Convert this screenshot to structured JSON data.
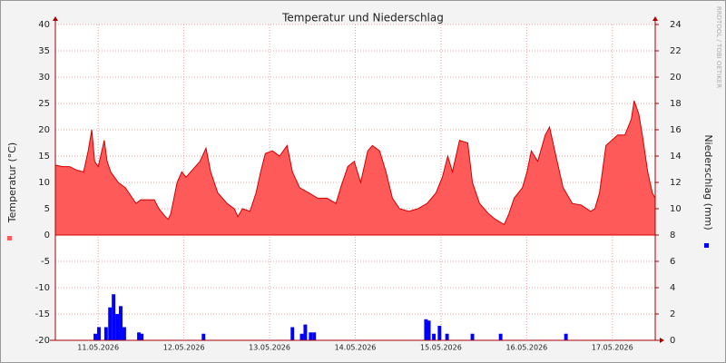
{
  "chart_data": {
    "type": "rrd",
    "title": "Temperatur und Niederschlag",
    "y_label": "Temperatur (°C)",
    "y2_label": "Niederschlag (mm)",
    "watermark": "RRDTOOL / TOBI OETIKER",
    "xlim": [
      0,
      168
    ],
    "xticks": [
      {
        "value": 12,
        "label": "11.05.2026"
      },
      {
        "value": 36,
        "label": "12.05.2026"
      },
      {
        "value": 60,
        "label": "13.05.2026"
      },
      {
        "value": 84,
        "label": "14.05.2026"
      },
      {
        "value": 108,
        "label": "15.05.2026"
      },
      {
        "value": 132,
        "label": "16.05.2026"
      },
      {
        "value": 156,
        "label": "17.05.2026"
      }
    ],
    "ylim": [
      -20,
      40
    ],
    "yticks": [
      -20,
      -15,
      -10,
      -5,
      0,
      5,
      10,
      15,
      20,
      25,
      30,
      35,
      40
    ],
    "y2lim": [
      0,
      24
    ],
    "y2ticks": [
      0,
      2,
      4,
      6,
      8,
      10,
      12,
      14,
      16,
      18,
      20,
      22,
      24
    ],
    "grid": true,
    "series": [
      {
        "kind": "area",
        "color": "#ff5a5a",
        "x": [
          0,
          2,
          4,
          6.1,
          7.9,
          9.2,
          10.2,
          11,
          12,
          13.7,
          14.5,
          15.5,
          17.6,
          19.6,
          21.6,
          22.6,
          23.9,
          27.7,
          29,
          30.8,
          31.6,
          32.3,
          34.1,
          35.4,
          36.6,
          37.9,
          40.5,
          42.2,
          43.5,
          45.5,
          48.1,
          50.1,
          51.1,
          52.4,
          54.5,
          56.2,
          57.5,
          58.8,
          60.8,
          62.8,
          64.9,
          66.4,
          68.4,
          71,
          73.5,
          76.1,
          78.6,
          79.9,
          81.9,
          83.7,
          85.5,
          87.5,
          88.8,
          90.8,
          92.6,
          94.4,
          96.4,
          99,
          101.5,
          104.1,
          106.6,
          108.4,
          109.9,
          111.2,
          113.2,
          115.5,
          116.8,
          118.8,
          121.4,
          123.2,
          125.7,
          127,
          128.5,
          130.8,
          132.1,
          133.3,
          135.1,
          137.2,
          138.4,
          140.2,
          142.2,
          144.8,
          147.3,
          149.9,
          151.1,
          152.4,
          154.2,
          157.5,
          159.5,
          161.3,
          162.1,
          163.4,
          164.4,
          165.9,
          167.2,
          168
        ],
        "values": [
          13.3,
          13,
          13,
          12.3,
          12,
          16,
          20,
          14,
          13,
          18,
          14,
          12,
          10,
          9,
          7,
          6,
          6.7,
          6.7,
          5,
          3.5,
          3,
          4,
          10,
          12,
          11,
          12,
          14,
          16.5,
          12,
          8,
          6,
          5,
          3.5,
          5,
          4.5,
          8,
          12,
          15.5,
          16,
          15,
          17,
          12,
          9,
          8,
          7,
          7,
          6,
          9,
          13,
          14,
          10,
          16,
          17,
          16,
          12,
          7,
          5,
          4.5,
          5,
          6,
          8,
          11,
          15,
          12,
          18,
          17.5,
          10,
          6,
          4,
          3,
          2,
          4,
          7,
          9,
          12,
          16,
          14,
          19,
          20.5,
          15,
          9,
          6,
          5.7,
          4.5,
          5,
          8,
          17,
          19,
          19,
          22,
          25.5,
          23,
          19,
          12,
          8,
          7
        ]
      },
      {
        "kind": "bar",
        "axis": "y2",
        "color": "#0000ff",
        "x": [
          11.2,
          12.2,
          14.2,
          15.3,
          16.3,
          17.3,
          18.3,
          19.3,
          23.4,
          24.2,
          41.5,
          66.4,
          69,
          70,
          71.5,
          72.5,
          103.8,
          104.6,
          106,
          107.6,
          109.7,
          116.8,
          124.7,
          143
        ],
        "values": [
          0.5,
          1,
          1,
          2.5,
          3.5,
          2,
          2.6,
          1,
          0.6,
          0.5,
          0.5,
          1,
          0.5,
          1.2,
          0.6,
          0.6,
          1.6,
          1.5,
          0.5,
          1.1,
          0.5,
          0.5,
          0.5,
          0.5
        ]
      }
    ]
  }
}
